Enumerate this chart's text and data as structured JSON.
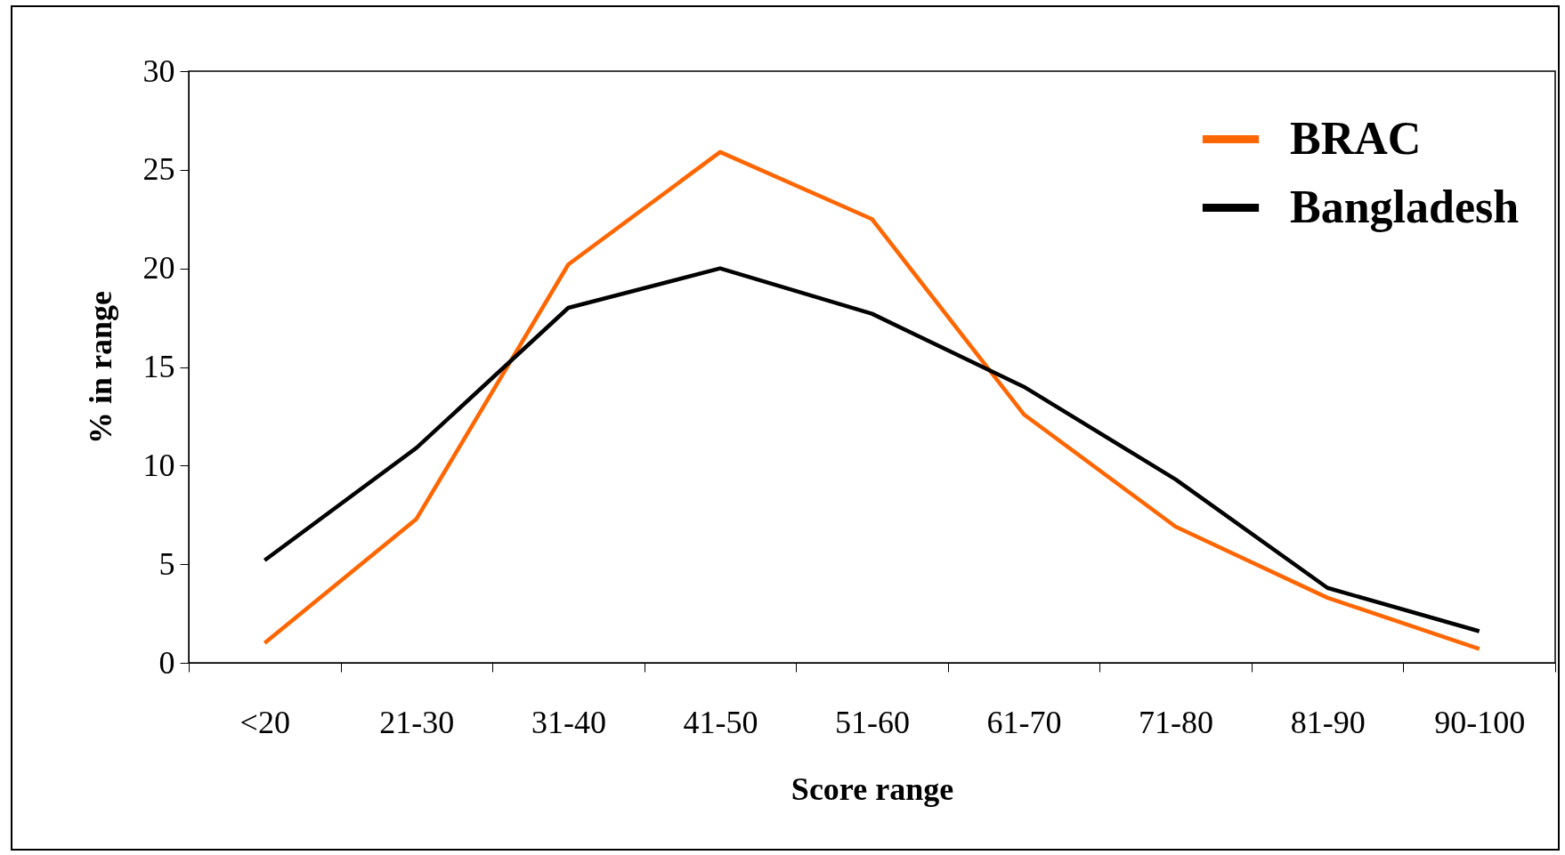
{
  "chart_data": {
    "type": "line",
    "xlabel": "Score range",
    "ylabel": "% in range",
    "categories": [
      "<20",
      "21-30",
      "31-40",
      "41-50",
      "51-60",
      "61-70",
      "71-80",
      "81-90",
      "90-100"
    ],
    "series": [
      {
        "name": "BRAC",
        "color": "#ff6600",
        "values": [
          1.0,
          7.3,
          20.2,
          25.9,
          22.5,
          12.6,
          6.9,
          3.3,
          0.7
        ]
      },
      {
        "name": "Bangladesh",
        "color": "#000000",
        "values": [
          5.2,
          10.9,
          18.0,
          20.0,
          17.7,
          14.0,
          9.3,
          3.8,
          1.6
        ]
      }
    ],
    "ylim": [
      0,
      30
    ],
    "yticks": [
      0,
      5,
      10,
      15,
      20,
      25,
      30
    ],
    "grid": false,
    "legend": "top right",
    "line_style": "solid",
    "marker": "none"
  }
}
